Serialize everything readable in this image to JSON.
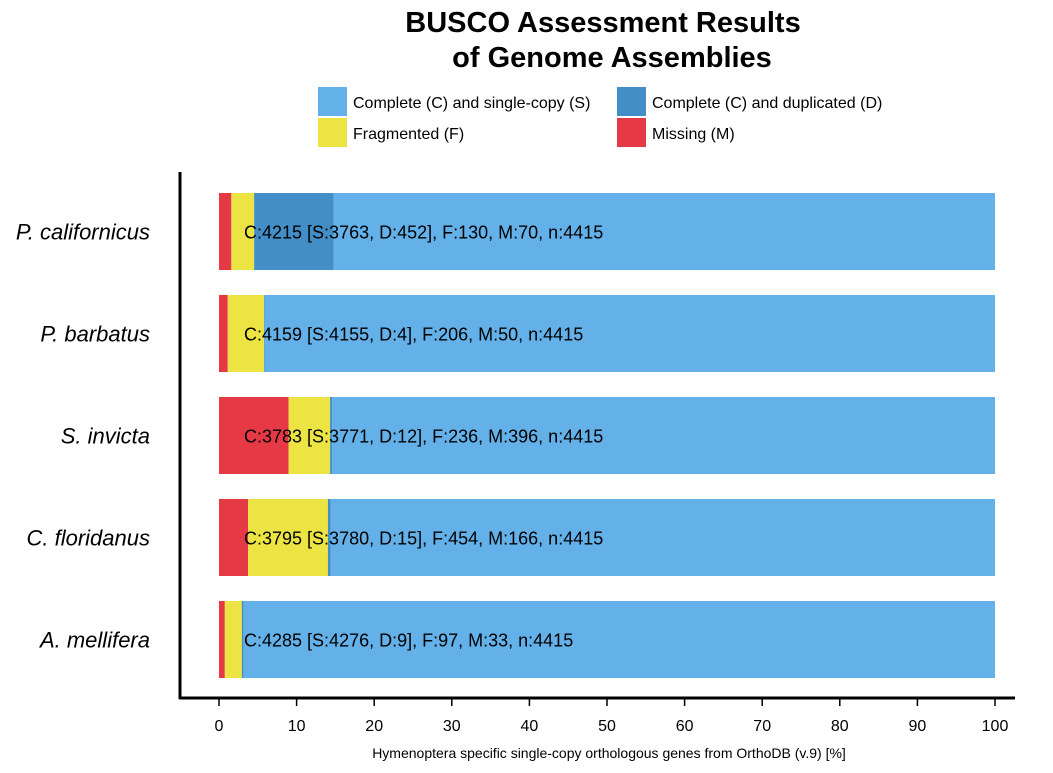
{
  "chart_data": {
    "type": "bar",
    "orientation": "horizontal",
    "stacked": true,
    "title": [
      "BUSCO Assessment Results",
      "of Genome Assemblies"
    ],
    "xlabel": "Hymenoptera specific single-copy orthologous genes from OrthoDB (v.9) [%]",
    "ylabel": "",
    "xlim": [
      0,
      100
    ],
    "xticks": [
      0,
      10,
      20,
      30,
      40,
      50,
      60,
      70,
      80,
      90,
      100
    ],
    "grid": false,
    "legend_position": "top",
    "categories": [
      "P. californicus",
      "P. barbatus",
      "S. invicta",
      "C. floridanus",
      "A. mellifera"
    ],
    "series": [
      {
        "name": "Missing (M)",
        "color": "#e63946",
        "values": [
          1.59,
          1.13,
          8.97,
          3.76,
          0.75
        ]
      },
      {
        "name": "Fragmented (F)",
        "color": "#ebe442",
        "values": [
          2.94,
          4.67,
          5.35,
          10.28,
          2.2
        ]
      },
      {
        "name": "Complete (C) and duplicated (D)",
        "color": "#438ec6",
        "values": [
          10.24,
          0.09,
          0.27,
          0.34,
          0.2
        ]
      },
      {
        "name": "Complete (C) and single-copy (S)",
        "color": "#63b1e8",
        "values": [
          85.23,
          94.11,
          85.41,
          85.62,
          96.85
        ]
      }
    ],
    "legend_order": [
      "Complete (C) and single-copy (S)",
      "Complete (C) and duplicated (D)",
      "Fragmented (F)",
      "Missing (M)"
    ],
    "annotations": [
      "C:4215 [S:3763, D:452], F:130, M:70, n:4415",
      "C:4159 [S:4155, D:4], F:206, M:50, n:4415",
      "C:3783 [S:3771, D:12], F:236, M:396, n:4415",
      "C:3795 [S:3780, D:15], F:454, M:166, n:4415",
      "C:4285 [S:4276, D:9], F:97, M:33, n:4415"
    ]
  }
}
